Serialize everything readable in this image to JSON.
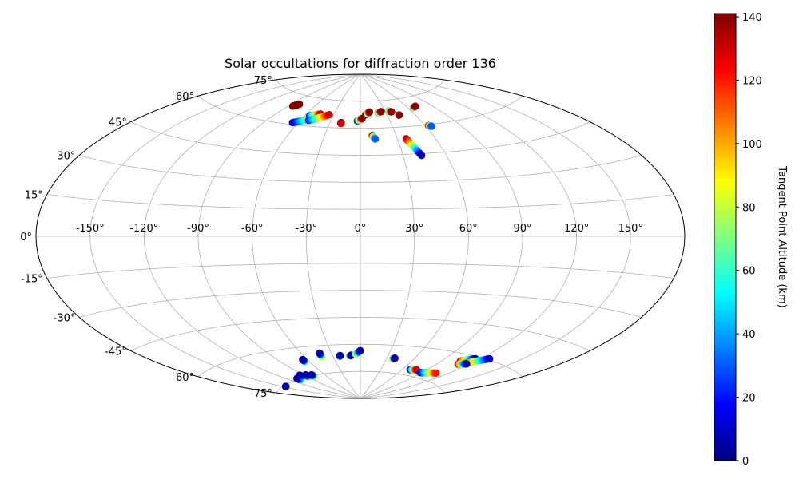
{
  "chart_data": {
    "type": "scatter",
    "projection": "aitoff",
    "title": "Solar occultations for diffraction order 136",
    "grid": true,
    "lon_ticks": [
      -150,
      -120,
      -90,
      -60,
      -30,
      0,
      30,
      60,
      90,
      120,
      150
    ],
    "lat_ticks": [
      -75,
      -60,
      -45,
      -30,
      -15,
      0,
      15,
      30,
      45,
      60,
      75
    ],
    "tick_suffix": "°",
    "colorbar": {
      "label": "Tangent Point Altitude (km)",
      "min": 0,
      "max": 141,
      "ticks": [
        0,
        20,
        40,
        60,
        80,
        100,
        120,
        140
      ],
      "colormap": "jet",
      "placement": "right"
    },
    "tracks": [
      {
        "lon_start": -85,
        "lat_start": 69.0,
        "lon_end": -81,
        "lat_end": 70.5,
        "alt_start": 141,
        "alt_end": 141
      },
      {
        "lon_start": -65,
        "lat_start": 61.0,
        "lon_end": -45,
        "lat_end": 65.5,
        "alt_start": 5,
        "alt_end": 120
      },
      {
        "lon_start": -55,
        "lat_start": 65.5,
        "lon_end": -45,
        "lat_end": 67.0,
        "alt_start": 20,
        "alt_end": 130
      },
      {
        "lon_start": -52,
        "lat_start": 63.0,
        "lon_end": -35,
        "lat_end": 67.0,
        "alt_start": 20,
        "alt_end": 130
      },
      {
        "lon_start": -19,
        "lat_start": 63.0,
        "lon_end": -19,
        "lat_end": 62.5,
        "alt_start": 140,
        "alt_end": 130
      },
      {
        "lon_start": -3,
        "lat_start": 64.0,
        "lon_end": 2,
        "lat_end": 65.5,
        "alt_start": 10,
        "alt_end": 140
      },
      {
        "lon_start": 6,
        "lat_start": 67.5,
        "lon_end": 11,
        "lat_end": 69.0,
        "alt_start": 140,
        "alt_end": 130
      },
      {
        "lon_start": 8,
        "lat_start": 68.0,
        "lon_end": 11,
        "lat_end": 69.0,
        "alt_start": 40,
        "alt_end": 140
      },
      {
        "lon_start": 21,
        "lat_start": 68.5,
        "lon_end": 25,
        "lat_end": 69.0,
        "alt_start": 40,
        "alt_end": 140
      },
      {
        "lon_start": 34,
        "lat_start": 69.0,
        "lon_end": 37,
        "lat_end": 68.5,
        "alt_start": 40,
        "alt_end": 140
      },
      {
        "lon_start": 43,
        "lat_start": 66.5,
        "lon_end": 43,
        "lat_end": 66.5,
        "alt_start": 140,
        "alt_end": 140
      },
      {
        "lon_start": 10,
        "lat_start": 56.0,
        "lon_end": 12,
        "lat_end": 54.0,
        "alt_start": 140,
        "alt_end": 30
      },
      {
        "lon_start": 37,
        "lat_start": 53.5,
        "lon_end": 43,
        "lat_end": 44.0,
        "alt_start": 140,
        "alt_end": 5
      },
      {
        "lon_start": 63,
        "lat_start": 59.5,
        "lon_end": 65,
        "lat_end": 59.0,
        "alt_start": 140,
        "alt_end": 30
      },
      {
        "lon_start": 67,
        "lat_start": 69.5,
        "lon_end": 71,
        "lat_end": 70.0,
        "alt_start": 40,
        "alt_end": 140
      },
      {
        "lon_start": -147,
        "lat_start": -75.5,
        "lon_end": -147,
        "lat_end": -75.5,
        "alt_start": 5,
        "alt_end": 5
      },
      {
        "lon_start": -107,
        "lat_start": -75.5,
        "lon_end": -107,
        "lat_end": -74.5,
        "alt_start": 60,
        "alt_end": 5
      },
      {
        "lon_start": -95,
        "lat_start": -74.5,
        "lon_end": -95,
        "lat_end": -73.5,
        "alt_start": 60,
        "alt_end": 5
      },
      {
        "lon_start": -87,
        "lat_start": -75.0,
        "lon_end": -87,
        "lat_end": -74.0,
        "alt_start": 60,
        "alt_end": 5
      },
      {
        "lon_start": -79,
        "lat_start": -75.5,
        "lon_end": -79,
        "lat_end": -74.5,
        "alt_start": 100,
        "alt_end": 5
      },
      {
        "lon_start": -65,
        "lat_start": -67.5,
        "lon_end": -65,
        "lat_end": -66.5,
        "alt_start": 60,
        "alt_end": 5
      },
      {
        "lon_start": -42,
        "lat_start": -66.0,
        "lon_end": -42,
        "lat_end": -64.0,
        "alt_start": 100,
        "alt_end": 5
      },
      {
        "lon_start": -23,
        "lat_start": -66.5,
        "lon_end": -22,
        "lat_end": -66.0,
        "alt_start": 100,
        "alt_end": 5
      },
      {
        "lon_start": -12,
        "lat_start": -66.5,
        "lon_end": -10,
        "lat_end": -66.0,
        "alt_start": 100,
        "alt_end": 5
      },
      {
        "lon_start": -5,
        "lat_start": -65.5,
        "lon_end": 0,
        "lat_end": -63.5,
        "alt_start": 100,
        "alt_end": 5
      },
      {
        "lon_start": 37,
        "lat_start": -67.5,
        "lon_end": 39,
        "lat_end": -67.0,
        "alt_start": 100,
        "alt_end": 5
      },
      {
        "lon_start": 70,
        "lat_start": -72.0,
        "lon_end": 78,
        "lat_end": -71.5,
        "alt_start": 5,
        "alt_end": 130
      },
      {
        "lon_start": 88,
        "lat_start": -72.5,
        "lon_end": 107,
        "lat_end": -71.0,
        "alt_start": 5,
        "alt_end": 120
      },
      {
        "lon_start": 107,
        "lat_start": -63.5,
        "lon_end": 116,
        "lat_end": -61.0,
        "alt_start": 130,
        "alt_end": 5
      },
      {
        "lon_start": 116,
        "lat_start": -63.5,
        "lon_end": 127,
        "lat_end": -59.5,
        "alt_start": 120,
        "alt_end": 10
      },
      {
        "lon_start": 110,
        "lat_start": -65.0,
        "lon_end": 117,
        "lat_end": -64.0,
        "alt_start": 130,
        "alt_end": 5
      }
    ]
  }
}
